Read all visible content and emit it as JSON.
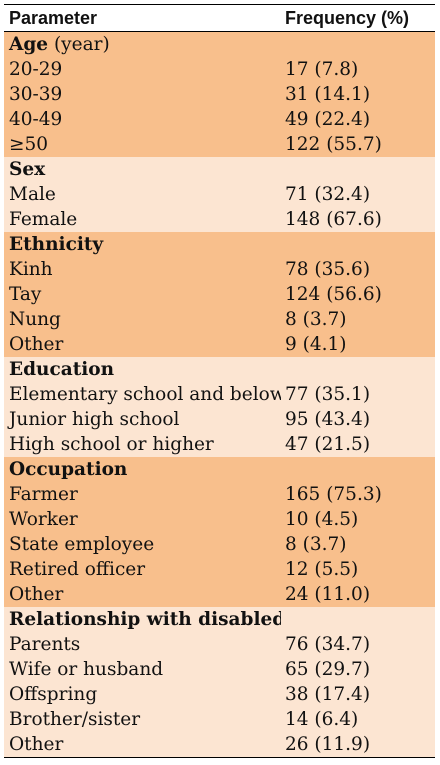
{
  "header": {
    "parameter": "Parameter",
    "frequency": "Frequency (%)"
  },
  "sections": [
    {
      "title": "Age",
      "unit": "(year)",
      "rows": [
        {
          "label": "20-29",
          "value": "17 (7.8)"
        },
        {
          "label": "30-39",
          "value": "31 (14.1)"
        },
        {
          "label": "40-49",
          "value": "49 (22.4)"
        },
        {
          "label": "≥50",
          "value": "122 (55.7)"
        }
      ]
    },
    {
      "title": "Sex",
      "unit": "",
      "rows": [
        {
          "label": "Male",
          "value": "71 (32.4)"
        },
        {
          "label": "Female",
          "value": "148 (67.6)"
        }
      ]
    },
    {
      "title": "Ethnicity",
      "unit": "",
      "rows": [
        {
          "label": "Kinh",
          "value": "78 (35.6)"
        },
        {
          "label": "Tay",
          "value": "124 (56.6)"
        },
        {
          "label": "Nung",
          "value": "8 (3.7)"
        },
        {
          "label": "Other",
          "value": "9 (4.1)"
        }
      ]
    },
    {
      "title": "Education",
      "unit": "",
      "rows": [
        {
          "label": "Elementary school and below",
          "value": "77 (35.1)"
        },
        {
          "label": "Junior high school",
          "value": "95 (43.4)"
        },
        {
          "label": "High school or higher",
          "value": "47 (21.5)"
        }
      ]
    },
    {
      "title": "Occupation",
      "unit": "",
      "rows": [
        {
          "label": "Farmer",
          "value": "165 (75.3)"
        },
        {
          "label": "Worker",
          "value": "10 (4.5)"
        },
        {
          "label": "State employee",
          "value": "8 (3.7)"
        },
        {
          "label": "Retired officer",
          "value": "12 (5.5)"
        },
        {
          "label": "Other",
          "value": "24 (11.0)"
        }
      ]
    },
    {
      "title": "Relationship with disabled people",
      "unit": "",
      "rows": [
        {
          "label": "Parents",
          "value": "76 (34.7)"
        },
        {
          "label": "Wife or husband",
          "value": "65 (29.7)"
        },
        {
          "label": "Offspring",
          "value": "38 (17.4)"
        },
        {
          "label": "Brother/sister",
          "value": "14 (6.4)"
        },
        {
          "label": "Other",
          "value": "26 (11.9)"
        }
      ]
    }
  ],
  "colors": {
    "band_dark": "#f8bf8c",
    "band_light": "#fce5d2"
  }
}
